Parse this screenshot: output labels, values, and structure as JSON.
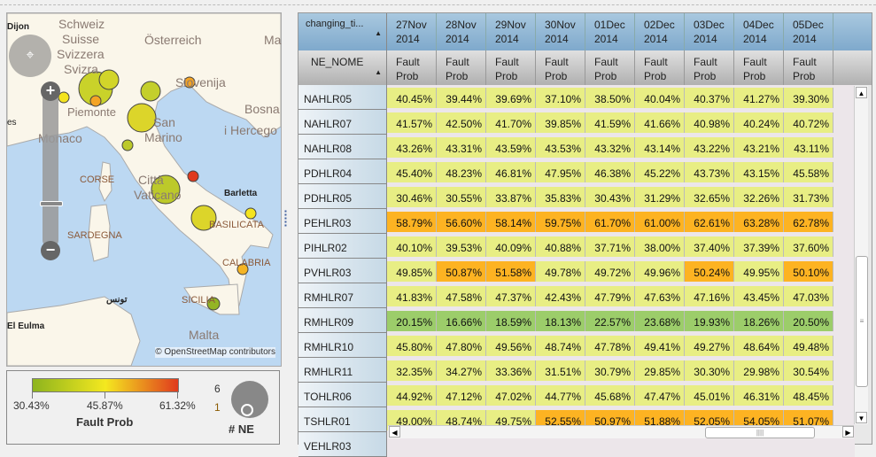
{
  "map": {
    "labels": [
      "Schweiz",
      "Suisse",
      "Svizzera",
      "Svizra",
      "Österreich",
      "Slovenija",
      "Bosna",
      "i Hercego",
      "Monaco",
      "San",
      "Marino",
      "Città",
      "Vaticano",
      "CORSE",
      "SARDEGNA",
      "BASILICATA",
      "CALABRIA",
      "SICILIA",
      "Malta",
      "Dijon",
      "Barletta",
      "El Eulma",
      "تونس",
      "Piemonte",
      "es",
      "Ma"
    ],
    "attribution": "© OpenStreetMap contributors",
    "zoom_in": "+",
    "zoom_out": "−",
    "bubble_colors": [
      "#c9d22a",
      "#d2d52a",
      "#f4e41f",
      "#f4a424",
      "#c4cf2c",
      "#dcd52a",
      "#bcc92a",
      "#e03a1e",
      "#f4e41f",
      "#f4b424",
      "#94b424"
    ]
  },
  "legend": {
    "min": "30.43%",
    "mid": "45.87%",
    "max": "61.32%",
    "title": "Fault Prob",
    "size_title": "# NE",
    "size_max": "6",
    "size_min": "1"
  },
  "table": {
    "corner_top": "changing_ti...",
    "corner_bottom": "NE_NOME",
    "columns": [
      {
        "day": "27Nov",
        "year": "2014",
        "measure": "Fault",
        "measure2": "Prob"
      },
      {
        "day": "28Nov",
        "year": "2014",
        "measure": "Fault",
        "measure2": "Prob"
      },
      {
        "day": "29Nov",
        "year": "2014",
        "measure": "Fault",
        "measure2": "Prob"
      },
      {
        "day": "30Nov",
        "year": "2014",
        "measure": "Fault",
        "measure2": "Prob"
      },
      {
        "day": "01Dec",
        "year": "2014",
        "measure": "Fault",
        "measure2": "Prob"
      },
      {
        "day": "02Dec",
        "year": "2014",
        "measure": "Fault",
        "measure2": "Prob"
      },
      {
        "day": "03Dec",
        "year": "2014",
        "measure": "Fault",
        "measure2": "Prob"
      },
      {
        "day": "04Dec",
        "year": "2014",
        "measure": "Fault",
        "measure2": "Prob"
      },
      {
        "day": "05Dec",
        "year": "2014",
        "measure": "Fault",
        "measure2": "Prob"
      }
    ],
    "colors": {
      "y": "#e8ee84",
      "o": "#fdb322",
      "g": "#9ccd6a"
    },
    "rows": [
      {
        "name": "NAHLR05",
        "values": [
          "40.45%",
          "39.44%",
          "39.69%",
          "37.10%",
          "38.50%",
          "40.04%",
          "40.37%",
          "41.27%",
          "39.30%"
        ],
        "classes": "yyyyyyyyy"
      },
      {
        "name": "NAHLR07",
        "values": [
          "41.57%",
          "42.50%",
          "41.70%",
          "39.85%",
          "41.59%",
          "41.66%",
          "40.98%",
          "40.24%",
          "40.72%"
        ],
        "classes": "yyyyyyyyy"
      },
      {
        "name": "NAHLR08",
        "values": [
          "43.26%",
          "43.31%",
          "43.59%",
          "43.53%",
          "43.32%",
          "43.14%",
          "43.22%",
          "43.21%",
          "43.11%"
        ],
        "classes": "yyyyyyyyy"
      },
      {
        "name": "PDHLR04",
        "values": [
          "45.40%",
          "48.23%",
          "46.81%",
          "47.95%",
          "46.38%",
          "45.22%",
          "43.73%",
          "43.15%",
          "45.58%"
        ],
        "classes": "yyyyyyyyy"
      },
      {
        "name": "PDHLR05",
        "values": [
          "30.46%",
          "30.55%",
          "33.87%",
          "35.83%",
          "30.43%",
          "31.29%",
          "32.65%",
          "32.26%",
          "31.73%"
        ],
        "classes": "yyyyyyyyy"
      },
      {
        "name": "PEHLR03",
        "values": [
          "58.79%",
          "56.60%",
          "58.14%",
          "59.75%",
          "61.70%",
          "61.00%",
          "62.61%",
          "63.28%",
          "62.78%"
        ],
        "classes": "ooooooooo"
      },
      {
        "name": "PIHLR02",
        "values": [
          "40.10%",
          "39.53%",
          "40.09%",
          "40.88%",
          "37.71%",
          "38.00%",
          "37.40%",
          "37.39%",
          "37.60%"
        ],
        "classes": "yyyyyyyyy"
      },
      {
        "name": "PVHLR03",
        "values": [
          "49.85%",
          "50.87%",
          "51.58%",
          "49.78%",
          "49.72%",
          "49.96%",
          "50.24%",
          "49.95%",
          "50.10%"
        ],
        "classes": "yooyyyoyo"
      },
      {
        "name": "RMHLR07",
        "values": [
          "41.83%",
          "47.58%",
          "47.37%",
          "42.43%",
          "47.79%",
          "47.63%",
          "47.16%",
          "43.45%",
          "47.03%"
        ],
        "classes": "yyyyyyyyy"
      },
      {
        "name": "RMHLR09",
        "values": [
          "20.15%",
          "16.66%",
          "18.59%",
          "18.13%",
          "22.57%",
          "23.68%",
          "19.93%",
          "18.26%",
          "20.50%"
        ],
        "classes": "ggggggggg"
      },
      {
        "name": "RMHLR10",
        "values": [
          "45.80%",
          "47.80%",
          "49.56%",
          "48.74%",
          "47.78%",
          "49.41%",
          "49.27%",
          "48.64%",
          "49.48%"
        ],
        "classes": "yyyyyyyyy"
      },
      {
        "name": "RMHLR11",
        "values": [
          "32.35%",
          "34.27%",
          "33.36%",
          "31.51%",
          "30.79%",
          "29.85%",
          "30.30%",
          "29.98%",
          "30.54%"
        ],
        "classes": "yyyyyyyyy"
      },
      {
        "name": "TOHLR06",
        "values": [
          "44.92%",
          "47.12%",
          "47.02%",
          "44.77%",
          "45.68%",
          "47.47%",
          "45.01%",
          "46.31%",
          "48.45%"
        ],
        "classes": "yyyyyyyyy"
      },
      {
        "name": "TSHLR01",
        "values": [
          "49.00%",
          "48.74%",
          "49.75%",
          "52.55%",
          "50.97%",
          "51.88%",
          "52.05%",
          "54.05%",
          "51.07%"
        ],
        "classes": "yyyoooooo"
      },
      {
        "name": "VEHLR03",
        "values": [],
        "classes": ""
      }
    ]
  }
}
